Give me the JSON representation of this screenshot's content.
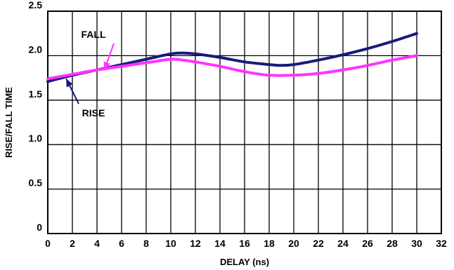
{
  "chart_data": {
    "type": "line",
    "title": "",
    "xlabel": "DELAY (ns)",
    "ylabel": "RISE/FALL TIME",
    "xlim": [
      0,
      32
    ],
    "ylim": [
      0,
      2.5
    ],
    "x_ticks": [
      0,
      2,
      4,
      6,
      8,
      10,
      12,
      14,
      16,
      18,
      20,
      22,
      24,
      26,
      28,
      30,
      32
    ],
    "x_tick_labels": [
      "0",
      "2",
      "4",
      "6",
      "8",
      "10",
      "12",
      "14",
      "16",
      "18",
      "20",
      "22",
      "24",
      "26",
      "28",
      "30",
      "32"
    ],
    "y_ticks": [
      0,
      0.5,
      1.0,
      1.5,
      2.0,
      2.5
    ],
    "y_tick_labels": [
      "0",
      "0.5",
      "1.0",
      "1.5",
      "2.0",
      "2.5"
    ],
    "grid": true,
    "legend": "none",
    "series": [
      {
        "name": "FALL",
        "color": "#1a1a7a",
        "x": [
          0,
          2,
          4,
          6,
          8,
          10,
          11,
          12,
          14,
          16,
          18,
          19,
          20,
          22,
          24,
          26,
          28,
          30
        ],
        "y": [
          1.71,
          1.78,
          1.84,
          1.9,
          1.96,
          2.02,
          2.03,
          2.02,
          1.98,
          1.93,
          1.9,
          1.89,
          1.9,
          1.95,
          2.01,
          2.08,
          2.16,
          2.25
        ]
      },
      {
        "name": "RISE",
        "color": "#ff33ff",
        "x": [
          0,
          2,
          4,
          6,
          8,
          10,
          11,
          12,
          14,
          16,
          18,
          20,
          22,
          24,
          26,
          28,
          30
        ],
        "y": [
          1.74,
          1.79,
          1.84,
          1.88,
          1.92,
          1.96,
          1.95,
          1.93,
          1.88,
          1.82,
          1.78,
          1.78,
          1.8,
          1.84,
          1.89,
          1.95,
          2.0
        ]
      }
    ],
    "annotations": [
      {
        "text": "FALL",
        "arrow_color": "#ff33ff",
        "points_to_x": 4.6,
        "points_to_y": 1.84
      },
      {
        "text": "RISE",
        "arrow_color": "#1a1a7a",
        "points_to_x": 1.5,
        "points_to_y": 1.74
      }
    ]
  }
}
